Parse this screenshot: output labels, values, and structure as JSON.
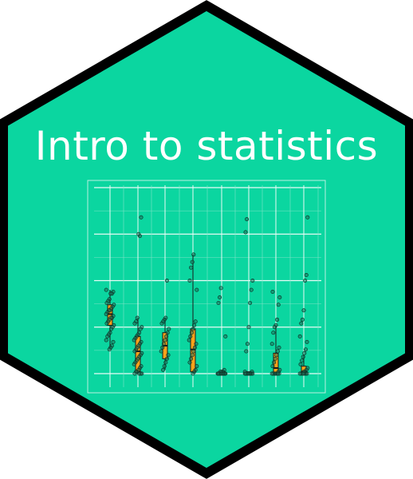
{
  "title": "Intro to statistics",
  "colors": {
    "hex_fill": "#0bd6a0",
    "hex_border": "#000000",
    "title_text": "#ffffff",
    "box_fill": "#f7a21b",
    "point": "#1f6e57"
  },
  "chart_data": {
    "type": "box",
    "title": "",
    "xlabel": "",
    "ylabel": "",
    "grid": true,
    "ylim": [
      0,
      100
    ],
    "series": [
      {
        "q1": 26,
        "median": 32,
        "q3": 37,
        "whisker_low": 13,
        "whisker_high": 45,
        "points": [
          45,
          44,
          43,
          43,
          40,
          39,
          38,
          37,
          36,
          35,
          34,
          34,
          33,
          32,
          31,
          30,
          30,
          29,
          28,
          27,
          26,
          25,
          24,
          22,
          21,
          20,
          18,
          17,
          15,
          14,
          13
        ]
      },
      {
        "q1": 1,
        "median": 12,
        "q3": 20,
        "whisker_low": 0,
        "whisker_high": 30,
        "points": [
          84,
          74,
          75,
          30,
          28,
          27,
          25,
          24,
          22,
          21,
          20,
          19,
          18,
          17,
          16,
          15,
          14,
          13,
          12,
          11,
          10,
          9,
          8,
          7,
          6,
          5,
          4,
          3,
          2,
          1,
          1,
          0,
          0,
          0,
          0
        ]
      },
      {
        "q1": 8,
        "median": 15,
        "q3": 22,
        "whisker_low": 2,
        "whisker_high": 30,
        "points": [
          50,
          30,
          29,
          28,
          27,
          24,
          22,
          20,
          18,
          16,
          14,
          12,
          10,
          8,
          6,
          4,
          2
        ]
      },
      {
        "q1": 1,
        "median": 13,
        "q3": 24,
        "whisker_low": 0,
        "whisker_high": 64,
        "points": [
          64,
          60,
          57,
          50,
          45,
          28,
          26,
          24,
          22,
          20,
          18,
          16,
          14,
          12,
          10,
          8,
          6,
          4,
          2,
          1,
          0
        ]
      },
      {
        "q1": 0,
        "median": 0,
        "q3": 1,
        "whisker_low": 0,
        "whisker_high": 1,
        "points": [
          46,
          41,
          38,
          20,
          2,
          1,
          1,
          1,
          0,
          0,
          0,
          0,
          0,
          0,
          0,
          0,
          0,
          0,
          0,
          0,
          0,
          0,
          0
        ]
      },
      {
        "q1": 0,
        "median": 0,
        "q3": 1,
        "whisker_low": 0,
        "whisker_high": 1,
        "points": [
          83,
          76,
          50,
          45,
          38,
          25,
          16,
          12,
          1,
          1,
          0,
          0,
          0,
          0,
          0,
          0,
          0,
          0,
          0,
          0,
          0,
          0
        ]
      },
      {
        "q1": 0,
        "median": 3,
        "q3": 11,
        "whisker_low": 0,
        "whisker_high": 26,
        "points": [
          44,
          41,
          37,
          29,
          26,
          25,
          22,
          16,
          14,
          12,
          10,
          8,
          6,
          4,
          2,
          1,
          0,
          0,
          0,
          0,
          0,
          0,
          0
        ]
      },
      {
        "q1": 0,
        "median": 1,
        "q3": 4,
        "whisker_low": 0,
        "whisker_high": 10,
        "points": [
          84,
          53,
          50,
          34,
          29,
          27,
          20,
          17,
          13,
          11,
          9,
          7,
          5,
          3,
          2,
          1,
          1,
          0,
          0,
          0,
          0,
          0,
          0,
          0
        ]
      }
    ]
  }
}
